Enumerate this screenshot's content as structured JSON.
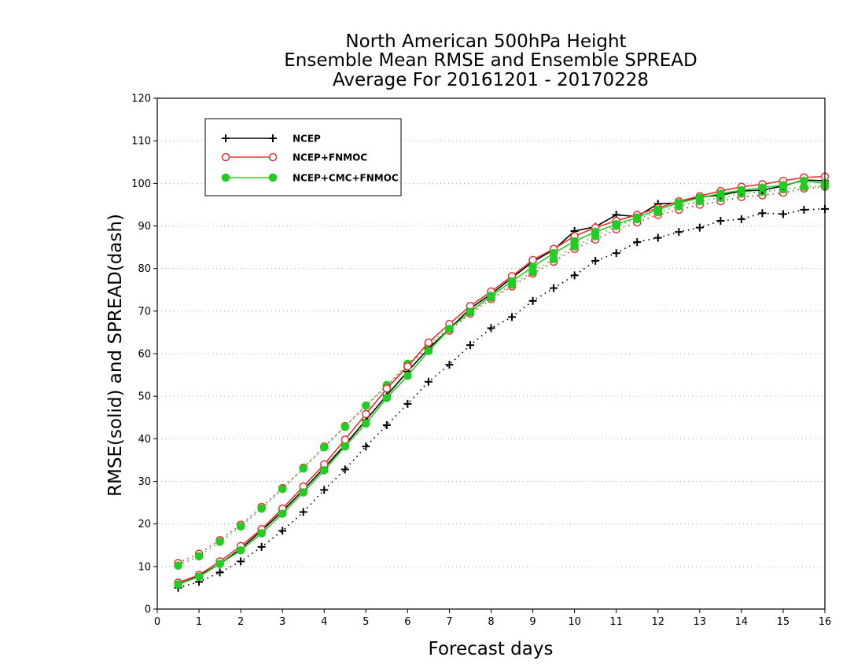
{
  "chart_data": {
    "type": "line",
    "title": [
      "North American 500hPa Height",
      "Ensemble Mean RMSE and Ensemble SPREAD",
      "Average For 20161201 - 20170228"
    ],
    "xlabel": "Forecast days",
    "ylabel": "RMSE(solid) and SPREAD(dash)",
    "xlim": [
      0,
      16
    ],
    "ylim": [
      0,
      120
    ],
    "xticks": [
      0,
      1,
      2,
      3,
      4,
      5,
      6,
      7,
      8,
      9,
      10,
      11,
      12,
      13,
      14,
      15,
      16
    ],
    "yticks": [
      0,
      10,
      20,
      30,
      40,
      50,
      60,
      70,
      80,
      90,
      100,
      110,
      120
    ],
    "grid": "horizontal dotted",
    "legend_position": "top-left",
    "x": [
      0.5,
      1,
      1.5,
      2,
      2.5,
      3,
      3.5,
      4,
      4.5,
      5,
      5.5,
      6,
      6.5,
      7,
      7.5,
      8,
      8.5,
      9,
      9.5,
      10,
      10.5,
      11,
      11.5,
      12,
      12.5,
      13,
      13.5,
      14,
      14.5,
      15,
      15.5,
      16
    ],
    "series": [
      {
        "name": "NCEP",
        "style": "solid",
        "marker": "plus",
        "color": "#000000",
        "values": [
          5.8,
          7.8,
          10.6,
          14.2,
          18.4,
          23.0,
          28.0,
          33.2,
          38.6,
          44.4,
          50.2,
          55.8,
          61.2,
          65.8,
          70.6,
          74.0,
          77.8,
          81.6,
          84.4,
          88.8,
          89.8,
          92.6,
          92.2,
          95.2,
          95.4,
          96.8,
          97.2,
          98.2,
          98.4,
          99.4,
          100.8,
          100.6
        ]
      },
      {
        "name": "NCEP+FNMOC",
        "style": "solid",
        "marker": "circle-open",
        "color": "#e83030",
        "values": [
          6.2,
          8.0,
          11.2,
          14.8,
          18.8,
          23.6,
          28.8,
          34.0,
          39.8,
          45.8,
          51.8,
          57.0,
          62.6,
          67.0,
          71.2,
          74.6,
          78.2,
          82.0,
          84.6,
          87.6,
          89.6,
          91.2,
          92.6,
          94.2,
          95.8,
          97.0,
          98.2,
          99.2,
          99.8,
          100.6,
          101.4,
          101.6
        ]
      },
      {
        "name": "NCEP+CMC+FNMOC",
        "style": "solid",
        "marker": "circle-filled",
        "color": "#22cc22",
        "values": [
          5.8,
          7.6,
          10.6,
          13.8,
          17.8,
          22.4,
          27.4,
          32.6,
          38.2,
          43.6,
          49.6,
          54.8,
          60.6,
          65.8,
          69.8,
          73.6,
          77.0,
          80.4,
          83.6,
          86.4,
          88.6,
          90.4,
          92.0,
          93.8,
          95.4,
          96.6,
          97.6,
          98.4,
          99.0,
          99.6,
          100.6,
          100.0
        ]
      },
      {
        "name": "NCEP spread",
        "style": "dotted",
        "marker": "plus",
        "color": "#000000",
        "values": [
          5.0,
          6.4,
          8.6,
          11.2,
          14.6,
          18.4,
          22.8,
          28.0,
          32.8,
          38.2,
          43.2,
          48.2,
          53.4,
          57.4,
          62.0,
          66.0,
          68.6,
          72.4,
          75.4,
          78.4,
          81.8,
          83.6,
          86.2,
          87.2,
          88.6,
          89.6,
          91.2,
          91.6,
          93.0,
          92.8,
          93.8,
          94.0
        ]
      },
      {
        "name": "NCEP+FNMOC spread",
        "style": "dotted",
        "marker": "circle-open",
        "color": "#e83030",
        "values": [
          10.8,
          13.0,
          16.2,
          19.8,
          24.0,
          28.4,
          33.2,
          38.2,
          43.0,
          47.8,
          52.4,
          57.2,
          61.6,
          65.4,
          69.4,
          72.8,
          75.8,
          78.8,
          81.6,
          84.6,
          86.8,
          89.2,
          90.8,
          92.6,
          93.8,
          95.0,
          95.8,
          96.8,
          97.2,
          97.8,
          98.8,
          99.2
        ]
      },
      {
        "name": "NCEP+CMC+FNMOC spread",
        "style": "dotted",
        "marker": "circle-filled",
        "color": "#22cc22",
        "values": [
          10.2,
          12.4,
          15.8,
          19.4,
          23.6,
          28.2,
          33.0,
          38.0,
          42.8,
          47.8,
          52.6,
          57.6,
          62.2,
          66.0,
          69.8,
          73.2,
          76.2,
          79.2,
          82.2,
          85.2,
          87.6,
          90.0,
          91.6,
          93.2,
          94.6,
          95.8,
          96.6,
          97.6,
          98.0,
          98.6,
          99.2,
          99.4
        ]
      }
    ],
    "legend": [
      "NCEP",
      "NCEP+FNMOC",
      "NCEP+CMC+FNMOC"
    ]
  }
}
